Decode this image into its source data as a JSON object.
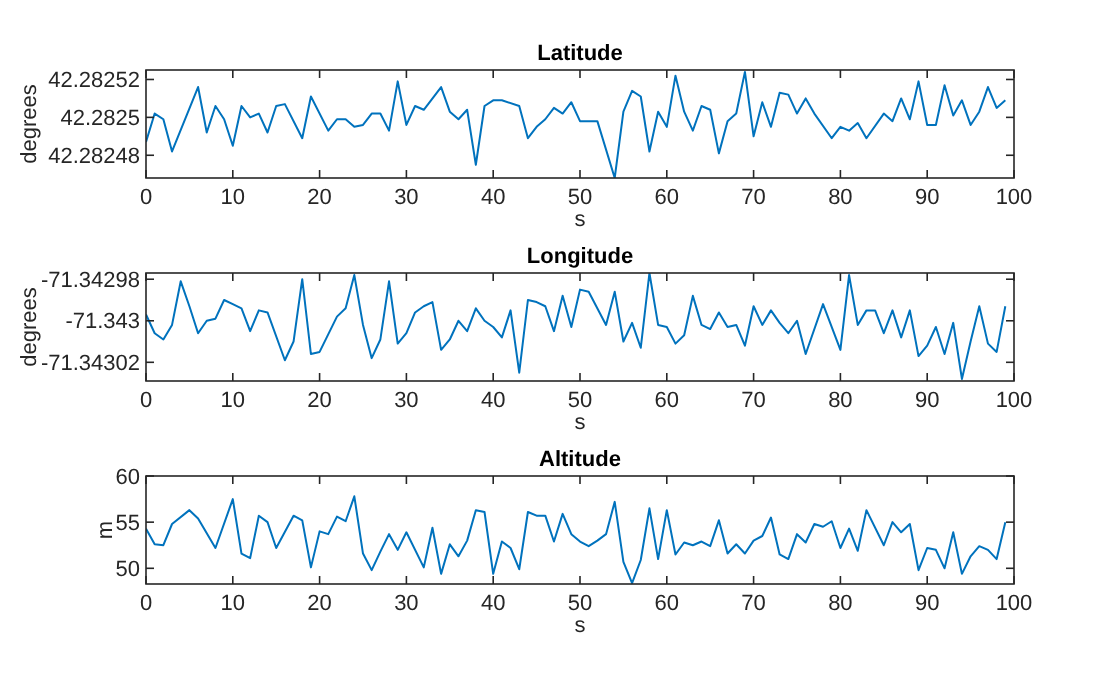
{
  "chart_data": [
    {
      "type": "line",
      "title": "Latitude",
      "xlabel": "s",
      "ylabel": "degrees",
      "xlim": [
        0,
        100
      ],
      "xticks": [
        0,
        10,
        20,
        30,
        40,
        50,
        60,
        70,
        80,
        90,
        100
      ],
      "ylim": [
        42.282468,
        42.282525
      ],
      "yticks": [
        42.28248,
        42.2825,
        42.28252
      ],
      "x": [
        0,
        1,
        2,
        3,
        6,
        7,
        8,
        9,
        10,
        11,
        12,
        13,
        14,
        15,
        16,
        18,
        19,
        21,
        22,
        23,
        24,
        25,
        26,
        27,
        28,
        29,
        30,
        31,
        32,
        34,
        35,
        36,
        37,
        38,
        39,
        40,
        41,
        43,
        44,
        45,
        46,
        47,
        48,
        49,
        50,
        52,
        54,
        55,
        56,
        57,
        58,
        59,
        60,
        61,
        62,
        63,
        64,
        65,
        66,
        67,
        68,
        69,
        70,
        71,
        72,
        73,
        74,
        75,
        76,
        77,
        79,
        80,
        81,
        82,
        83,
        85,
        86,
        87,
        88,
        89,
        90,
        91,
        92,
        93,
        94,
        95,
        96,
        97,
        98,
        99
      ],
      "series": [
        {
          "color": "#0072bd",
          "values": [
            42.282487,
            42.282502,
            42.282499,
            42.282482,
            42.282516,
            42.282492,
            42.282506,
            42.282499,
            42.282485,
            42.282506,
            42.2825,
            42.282502,
            42.282492,
            42.282506,
            42.282507,
            42.282489,
            42.282511,
            42.282493,
            42.282499,
            42.282499,
            42.282495,
            42.282496,
            42.282502,
            42.282502,
            42.282493,
            42.282519,
            42.282496,
            42.282506,
            42.282504,
            42.282516,
            42.282503,
            42.282499,
            42.282504,
            42.282475,
            42.282506,
            42.282509,
            42.282509,
            42.282506,
            42.282489,
            42.282495,
            42.282499,
            42.282505,
            42.282502,
            42.282508,
            42.282498,
            42.282498,
            42.282468,
            42.282503,
            42.282514,
            42.282511,
            42.282482,
            42.282503,
            42.282495,
            42.282522,
            42.282503,
            42.282493,
            42.282506,
            42.282504,
            42.282481,
            42.282498,
            42.282502,
            42.282524,
            42.28249,
            42.282508,
            42.282495,
            42.282513,
            42.282512,
            42.282502,
            42.28251,
            42.282502,
            42.282489,
            42.282495,
            42.282493,
            42.282497,
            42.282489,
            42.282502,
            42.282498,
            42.28251,
            42.282499,
            42.282519,
            42.282496,
            42.282496,
            42.282517,
            42.282501,
            42.282509,
            42.282496,
            42.282503,
            42.282516,
            42.282505,
            42.282509
          ]
        }
      ]
    },
    {
      "type": "line",
      "title": "Longitude",
      "xlabel": "s",
      "ylabel": "degrees",
      "xlim": [
        0,
        100
      ],
      "xticks": [
        0,
        10,
        20,
        30,
        40,
        50,
        60,
        70,
        80,
        90,
        100
      ],
      "ylim": [
        -71.343029,
        -71.342977
      ],
      "yticks": [
        -71.34302,
        -71.343,
        -71.34298
      ],
      "x": [
        0,
        1,
        2,
        3,
        4,
        5,
        6,
        7,
        8,
        9,
        10,
        11,
        12,
        13,
        14,
        16,
        17,
        18,
        19,
        20,
        22,
        23,
        24,
        25,
        26,
        27,
        28,
        29,
        30,
        31,
        32,
        33,
        34,
        35,
        36,
        37,
        38,
        39,
        40,
        41,
        42,
        43,
        44,
        45,
        46,
        47,
        48,
        49,
        50,
        51,
        53,
        54,
        55,
        56,
        57,
        58,
        59,
        60,
        61,
        62,
        63,
        64,
        65,
        66,
        67,
        68,
        69,
        70,
        71,
        72,
        73,
        74,
        75,
        76,
        78,
        80,
        81,
        82,
        83,
        84,
        85,
        86,
        87,
        88,
        89,
        90,
        91,
        92,
        93,
        94,
        95,
        96,
        97,
        98,
        99
      ],
      "series": [
        {
          "color": "#0072bd",
          "values": [
            -71.342997,
            -71.343006,
            -71.343009,
            -71.343002,
            -71.342981,
            -71.342993,
            -71.343006,
            -71.343,
            -71.342999,
            -71.34299,
            -71.342992,
            -71.342994,
            -71.343005,
            -71.342995,
            -71.342996,
            -71.343019,
            -71.34301,
            -71.34298,
            -71.343016,
            -71.343015,
            -71.342998,
            -71.342994,
            -71.342978,
            -71.343002,
            -71.343018,
            -71.343009,
            -71.342981,
            -71.343011,
            -71.343006,
            -71.342996,
            -71.342993,
            -71.342991,
            -71.343014,
            -71.343009,
            -71.343,
            -71.343005,
            -71.342994,
            -71.343,
            -71.343003,
            -71.343008,
            -71.342995,
            -71.343025,
            -71.34299,
            -71.342991,
            -71.342993,
            -71.343005,
            -71.342988,
            -71.343003,
            -71.342985,
            -71.342986,
            -71.343002,
            -71.342986,
            -71.34301,
            -71.343001,
            -71.343013,
            -71.342977,
            -71.343002,
            -71.343003,
            -71.343011,
            -71.343007,
            -71.342988,
            -71.343002,
            -71.343004,
            -71.342996,
            -71.343003,
            -71.343002,
            -71.343012,
            -71.342993,
            -71.343002,
            -71.342995,
            -71.343001,
            -71.343006,
            -71.343,
            -71.343016,
            -71.342992,
            -71.343014,
            -71.342978,
            -71.343002,
            -71.342995,
            -71.342995,
            -71.343006,
            -71.342995,
            -71.343008,
            -71.342995,
            -71.343017,
            -71.343012,
            -71.343003,
            -71.343016,
            -71.343001,
            -71.343028,
            -71.34301,
            -71.342993,
            -71.343011,
            -71.343015,
            -71.342993
          ]
        }
      ]
    },
    {
      "type": "line",
      "title": "Altitude",
      "xlabel": "s",
      "ylabel": "m",
      "xlim": [
        0,
        100
      ],
      "xticks": [
        0,
        10,
        20,
        30,
        40,
        50,
        60,
        70,
        80,
        90,
        100
      ],
      "ylim": [
        48.3,
        60
      ],
      "yticks": [
        50,
        55,
        60
      ],
      "x": [
        0,
        1,
        2,
        3,
        5,
        6,
        8,
        10,
        11,
        12,
        13,
        14,
        15,
        17,
        18,
        19,
        20,
        21,
        22,
        23,
        24,
        25,
        26,
        27,
        28,
        29,
        30,
        32,
        33,
        34,
        35,
        36,
        37,
        38,
        39,
        40,
        41,
        42,
        43,
        44,
        45,
        46,
        47,
        48,
        49,
        50,
        51,
        52,
        53,
        54,
        55,
        56,
        57,
        58,
        59,
        60,
        61,
        62,
        63,
        64,
        65,
        66,
        67,
        68,
        69,
        70,
        71,
        72,
        73,
        74,
        75,
        76,
        77,
        78,
        79,
        80,
        81,
        82,
        83,
        85,
        86,
        87,
        88,
        89,
        90,
        91,
        92,
        93,
        94,
        95,
        96,
        97,
        98,
        99
      ],
      "series": [
        {
          "color": "#0072bd",
          "values": [
            54.3,
            52.6,
            52.5,
            54.8,
            56.3,
            55.4,
            52.2,
            57.5,
            51.6,
            51.1,
            55.7,
            55.0,
            52.2,
            55.7,
            55.2,
            50.1,
            54.0,
            53.7,
            55.6,
            55.1,
            57.8,
            51.6,
            49.8,
            51.8,
            53.7,
            52.0,
            53.9,
            50.1,
            54.4,
            49.4,
            52.6,
            51.3,
            53.0,
            56.3,
            56.1,
            49.4,
            52.9,
            52.2,
            49.9,
            56.1,
            55.7,
            55.7,
            52.9,
            55.9,
            53.7,
            52.9,
            52.4,
            53.0,
            53.7,
            57.2,
            50.7,
            48.4,
            50.9,
            56.5,
            51.0,
            56.3,
            51.5,
            52.8,
            52.5,
            52.9,
            52.4,
            55.2,
            51.6,
            52.6,
            51.6,
            53.0,
            53.5,
            55.5,
            51.5,
            51.0,
            53.7,
            52.8,
            54.8,
            54.5,
            55.1,
            52.2,
            54.3,
            51.9,
            56.3,
            52.5,
            55.0,
            53.9,
            54.8,
            49.8,
            52.2,
            52.0,
            50.0,
            53.9,
            49.4,
            51.3,
            52.4,
            52.0,
            51.0,
            55.0
          ]
        }
      ]
    }
  ]
}
